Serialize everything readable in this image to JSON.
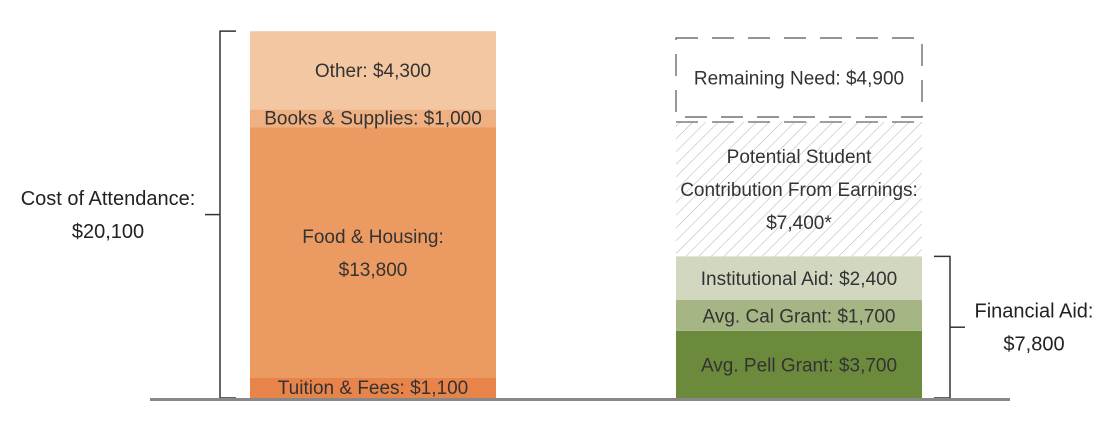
{
  "chart_data": {
    "type": "bar",
    "title": "",
    "xlabel": "",
    "ylabel": "",
    "stacked": true,
    "ylim": [
      0,
      20100
    ],
    "grid": false,
    "bars": [
      {
        "segments": [
          {
            "label": "Tuition & Fees: $1,100",
            "value": 1100,
            "color": "#e8844a",
            "style": "solid"
          },
          {
            "label": "Food & Housing:\n$13,800",
            "value": 13800,
            "color": "#eb9a62",
            "style": "solid"
          },
          {
            "label": "Books & Supplies: $1,000",
            "value": 1000,
            "color": "#efb182",
            "style": "solid"
          },
          {
            "label": "Other: $4,300",
            "value": 4300,
            "color": "#f4c7a3",
            "style": "solid"
          }
        ],
        "bracket": {
          "side": "left",
          "label": "Cost of Attendance:\n$20,100"
        }
      },
      {
        "segments": [
          {
            "label": "Avg. Pell Grant: $3,700",
            "value": 3700,
            "color": "#6c8a3c",
            "style": "solid"
          },
          {
            "label": "Avg. Cal Grant: $1,700",
            "value": 1700,
            "color": "#a5b584",
            "style": "solid"
          },
          {
            "label": "Institutional Aid: $2,400",
            "value": 2400,
            "color": "#d2d7c0",
            "style": "solid"
          },
          {
            "label": "Potential Student\nContribution From Earnings:\n$7,400*",
            "value": 7400,
            "color": "#b0b0b0",
            "style": "hatched"
          },
          {
            "label": "Remaining Need: $4,900",
            "value": 4900,
            "color": "#555555",
            "style": "dashed"
          }
        ],
        "bracket": {
          "side": "right",
          "label": "Financial Aid:\n$7,800",
          "covers": [
            0,
            2
          ]
        }
      }
    ],
    "axis_color": "#888888",
    "text_color": "#333333"
  }
}
